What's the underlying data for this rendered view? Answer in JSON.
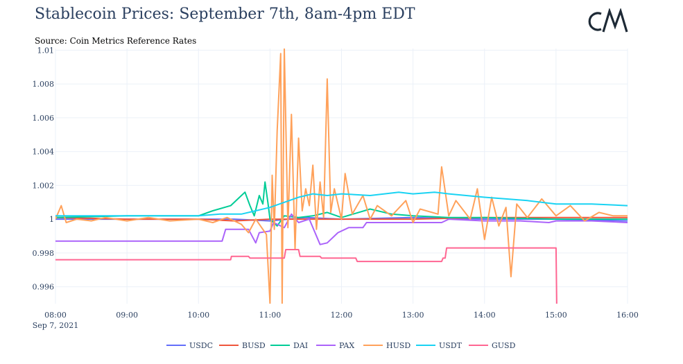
{
  "title": "Stablecoin Prices: September 7th, 8am-4pm EDT",
  "subtitle": "Source: Coin Metrics Reference Rates",
  "logo_text": "CM",
  "chart_data": {
    "type": "line",
    "title": "Stablecoin Prices: September 7th, 8am-4pm EDT",
    "subtitle": "Source: Coin Metrics Reference Rates",
    "xlabel": "",
    "ylabel": "",
    "x_unit": "hour",
    "x_range": [
      8,
      16
    ],
    "ylim": [
      0.995,
      1.0101
    ],
    "x_ticks": [
      {
        "value": 8,
        "label": "08:00"
      },
      {
        "value": 9,
        "label": "09:00"
      },
      {
        "value": 10,
        "label": "10:00"
      },
      {
        "value": 11,
        "label": "11:00"
      },
      {
        "value": 12,
        "label": "12:00"
      },
      {
        "value": 13,
        "label": "13:00"
      },
      {
        "value": 14,
        "label": "14:00"
      },
      {
        "value": 15,
        "label": "15:00"
      },
      {
        "value": 16,
        "label": "16:00"
      }
    ],
    "x_date_label": "Sep 7, 2021",
    "y_ticks": [
      {
        "value": 0.996,
        "label": "0.996"
      },
      {
        "value": 0.998,
        "label": "0.998"
      },
      {
        "value": 1.0,
        "label": "1"
      },
      {
        "value": 1.002,
        "label": "1.002"
      },
      {
        "value": 1.004,
        "label": "1.004"
      },
      {
        "value": 1.006,
        "label": "1.006"
      },
      {
        "value": 1.008,
        "label": "1.008"
      },
      {
        "value": 1.01,
        "label": "1.01"
      }
    ],
    "grid": true,
    "legend_position": "bottom-center",
    "series": [
      {
        "name": "USDC",
        "color": "#636efa",
        "points": [
          [
            8,
            1.0
          ],
          [
            9,
            1.0
          ],
          [
            10,
            1.0
          ],
          [
            10.5,
            1.0
          ],
          [
            11,
            0.9999
          ],
          [
            11.5,
            1.0001
          ],
          [
            12,
            1.0
          ],
          [
            13,
            1.0001
          ],
          [
            14,
            1.0
          ],
          [
            15,
            1.0
          ],
          [
            16,
            0.9999
          ]
        ]
      },
      {
        "name": "BUSD",
        "color": "#ef553b",
        "points": [
          [
            8,
            1.0001
          ],
          [
            9,
            1.0
          ],
          [
            10,
            1.0
          ],
          [
            10.5,
            0.9999
          ],
          [
            11,
            1.0
          ],
          [
            11.5,
            1.0
          ],
          [
            12,
            1.0
          ],
          [
            13,
            1.0
          ],
          [
            14,
            1.0001
          ],
          [
            15,
            1.0001
          ],
          [
            16,
            1.0001
          ]
        ]
      },
      {
        "name": "DAI",
        "color": "#00cc96",
        "points": [
          [
            8,
            1.0001
          ],
          [
            9,
            1.0002
          ],
          [
            10,
            1.0002
          ],
          [
            10.2,
            1.0005
          ],
          [
            10.45,
            1.0008
          ],
          [
            10.55,
            1.0012
          ],
          [
            10.65,
            1.0016
          ],
          [
            10.72,
            1.0008
          ],
          [
            10.78,
            1.0002
          ],
          [
            10.85,
            1.0014
          ],
          [
            10.9,
            1.0009
          ],
          [
            10.93,
            1.0022
          ],
          [
            10.97,
            1.001
          ],
          [
            11,
            1.0
          ],
          [
            11.1,
            0.9996
          ],
          [
            11.2,
            1.0002
          ],
          [
            11.4,
            1.0001
          ],
          [
            11.6,
            1.0002
          ],
          [
            11.8,
            1.0004
          ],
          [
            12,
            1.0001
          ],
          [
            12.4,
            1.0006
          ],
          [
            12.7,
            1.0003
          ],
          [
            13,
            1.0002
          ],
          [
            13.5,
            1.0001
          ],
          [
            14,
            1.0001
          ],
          [
            15,
            1.0
          ],
          [
            16,
            1.0
          ]
        ]
      },
      {
        "name": "PAX",
        "color": "#ab63fa",
        "points": [
          [
            8,
            0.9987
          ],
          [
            9,
            0.9987
          ],
          [
            10,
            0.9987
          ],
          [
            10.33,
            0.9987
          ],
          [
            10.38,
            0.9994
          ],
          [
            10.7,
            0.9994
          ],
          [
            10.8,
            0.9986
          ],
          [
            10.85,
            0.9992
          ],
          [
            11,
            0.9993
          ],
          [
            11.05,
            0.9998
          ],
          [
            11.2,
            0.9995
          ],
          [
            11.3,
            1.0003
          ],
          [
            11.4,
            0.9998
          ],
          [
            11.55,
            1.0
          ],
          [
            11.7,
            0.9985
          ],
          [
            11.8,
            0.9986
          ],
          [
            11.95,
            0.9992
          ],
          [
            12.1,
            0.9995
          ],
          [
            12.3,
            0.9995
          ],
          [
            12.35,
            0.9998
          ],
          [
            13,
            0.9998
          ],
          [
            13.4,
            0.9998
          ],
          [
            13.5,
            1.0
          ],
          [
            14,
            0.9999
          ],
          [
            14.5,
            0.9999
          ],
          [
            14.9,
            0.9998
          ],
          [
            15,
            0.9999
          ],
          [
            15.5,
            0.9999
          ],
          [
            16,
            0.9998
          ]
        ]
      },
      {
        "name": "HUSD",
        "color": "#ffa15a",
        "points": [
          [
            8,
            1.0
          ],
          [
            8.08,
            1.0008
          ],
          [
            8.15,
            0.9998
          ],
          [
            8.3,
            1.0
          ],
          [
            8.5,
            0.9999
          ],
          [
            8.7,
            1.0001
          ],
          [
            9,
            0.9999
          ],
          [
            9.3,
            1.0001
          ],
          [
            9.6,
            0.9999
          ],
          [
            10,
            1.0
          ],
          [
            10.2,
            0.9998
          ],
          [
            10.4,
            1.0001
          ],
          [
            10.6,
            0.9997
          ],
          [
            10.7,
            0.9992
          ],
          [
            10.8,
            1.0
          ],
          [
            10.95,
            0.9991
          ],
          [
            11.0,
            0.995
          ],
          [
            11.03,
            1.0026
          ],
          [
            11.06,
            0.9994
          ],
          [
            11.1,
            1.0052
          ],
          [
            11.15,
            1.0098
          ],
          [
            11.17,
            0.995
          ],
          [
            11.2,
            1.0101
          ],
          [
            11.25,
            0.9995
          ],
          [
            11.3,
            1.0062
          ],
          [
            11.35,
            0.9982
          ],
          [
            11.4,
            1.0048
          ],
          [
            11.45,
            1.0005
          ],
          [
            11.5,
            1.0018
          ],
          [
            11.55,
            1.0008
          ],
          [
            11.6,
            1.0032
          ],
          [
            11.65,
            0.9994
          ],
          [
            11.7,
            1.0022
          ],
          [
            11.75,
            1.0001
          ],
          [
            11.8,
            1.0083
          ],
          [
            11.85,
            1.0004
          ],
          [
            11.9,
            1.0018
          ],
          [
            12,
            1.0
          ],
          [
            12.05,
            1.0027
          ],
          [
            12.15,
            1.0003
          ],
          [
            12.3,
            1.0014
          ],
          [
            12.4,
            1.0
          ],
          [
            12.5,
            1.0008
          ],
          [
            12.7,
            1.0002
          ],
          [
            12.9,
            1.0011
          ],
          [
            13,
            0.9998
          ],
          [
            13.1,
            1.0006
          ],
          [
            13.35,
            1.0003
          ],
          [
            13.4,
            1.0031
          ],
          [
            13.5,
            1.0002
          ],
          [
            13.6,
            1.0011
          ],
          [
            13.8,
            1.0
          ],
          [
            13.9,
            1.0018
          ],
          [
            14.0,
            0.9988
          ],
          [
            14.1,
            1.0013
          ],
          [
            14.2,
            0.9996
          ],
          [
            14.3,
            1.0007
          ],
          [
            14.37,
            0.9966
          ],
          [
            14.45,
            1.0009
          ],
          [
            14.6,
            1.0001
          ],
          [
            14.8,
            1.0012
          ],
          [
            15,
            1.0002
          ],
          [
            15.2,
            1.0008
          ],
          [
            15.4,
            0.9999
          ],
          [
            15.6,
            1.0004
          ],
          [
            15.8,
            1.0002
          ],
          [
            16,
            1.0002
          ]
        ]
      },
      {
        "name": "USDT",
        "color": "#19d3f3",
        "points": [
          [
            8,
            1.0002
          ],
          [
            9,
            1.0002
          ],
          [
            10,
            1.0002
          ],
          [
            10.3,
            1.0003
          ],
          [
            10.6,
            1.0003
          ],
          [
            10.8,
            1.0005
          ],
          [
            11,
            1.0007
          ],
          [
            11.2,
            1.001
          ],
          [
            11.4,
            1.0013
          ],
          [
            11.6,
            1.0015
          ],
          [
            11.8,
            1.0014
          ],
          [
            12,
            1.0015
          ],
          [
            12.4,
            1.0014
          ],
          [
            12.8,
            1.0016
          ],
          [
            13,
            1.0015
          ],
          [
            13.3,
            1.0016
          ],
          [
            13.5,
            1.0015
          ],
          [
            14,
            1.0013
          ],
          [
            14.3,
            1.0012
          ],
          [
            14.6,
            1.0011
          ],
          [
            15,
            1.0009
          ],
          [
            15.5,
            1.0009
          ],
          [
            16,
            1.0008
          ]
        ]
      },
      {
        "name": "GUSD",
        "color": "#ff6692",
        "points": [
          [
            8,
            0.9976
          ],
          [
            9,
            0.9976
          ],
          [
            10,
            0.9976
          ],
          [
            10.45,
            0.9976
          ],
          [
            10.46,
            0.9978
          ],
          [
            10.7,
            0.9978
          ],
          [
            10.72,
            0.9977
          ],
          [
            11.2,
            0.9977
          ],
          [
            11.22,
            0.9982
          ],
          [
            11.4,
            0.9982
          ],
          [
            11.42,
            0.9978
          ],
          [
            11.7,
            0.9978
          ],
          [
            11.72,
            0.9977
          ],
          [
            12.2,
            0.9977
          ],
          [
            12.22,
            0.9975
          ],
          [
            13.4,
            0.9975
          ],
          [
            13.42,
            0.9977
          ],
          [
            13.45,
            0.9977
          ],
          [
            13.47,
            0.9983
          ],
          [
            15,
            0.9983
          ],
          [
            15.01,
            0.995
          ]
        ]
      }
    ]
  }
}
